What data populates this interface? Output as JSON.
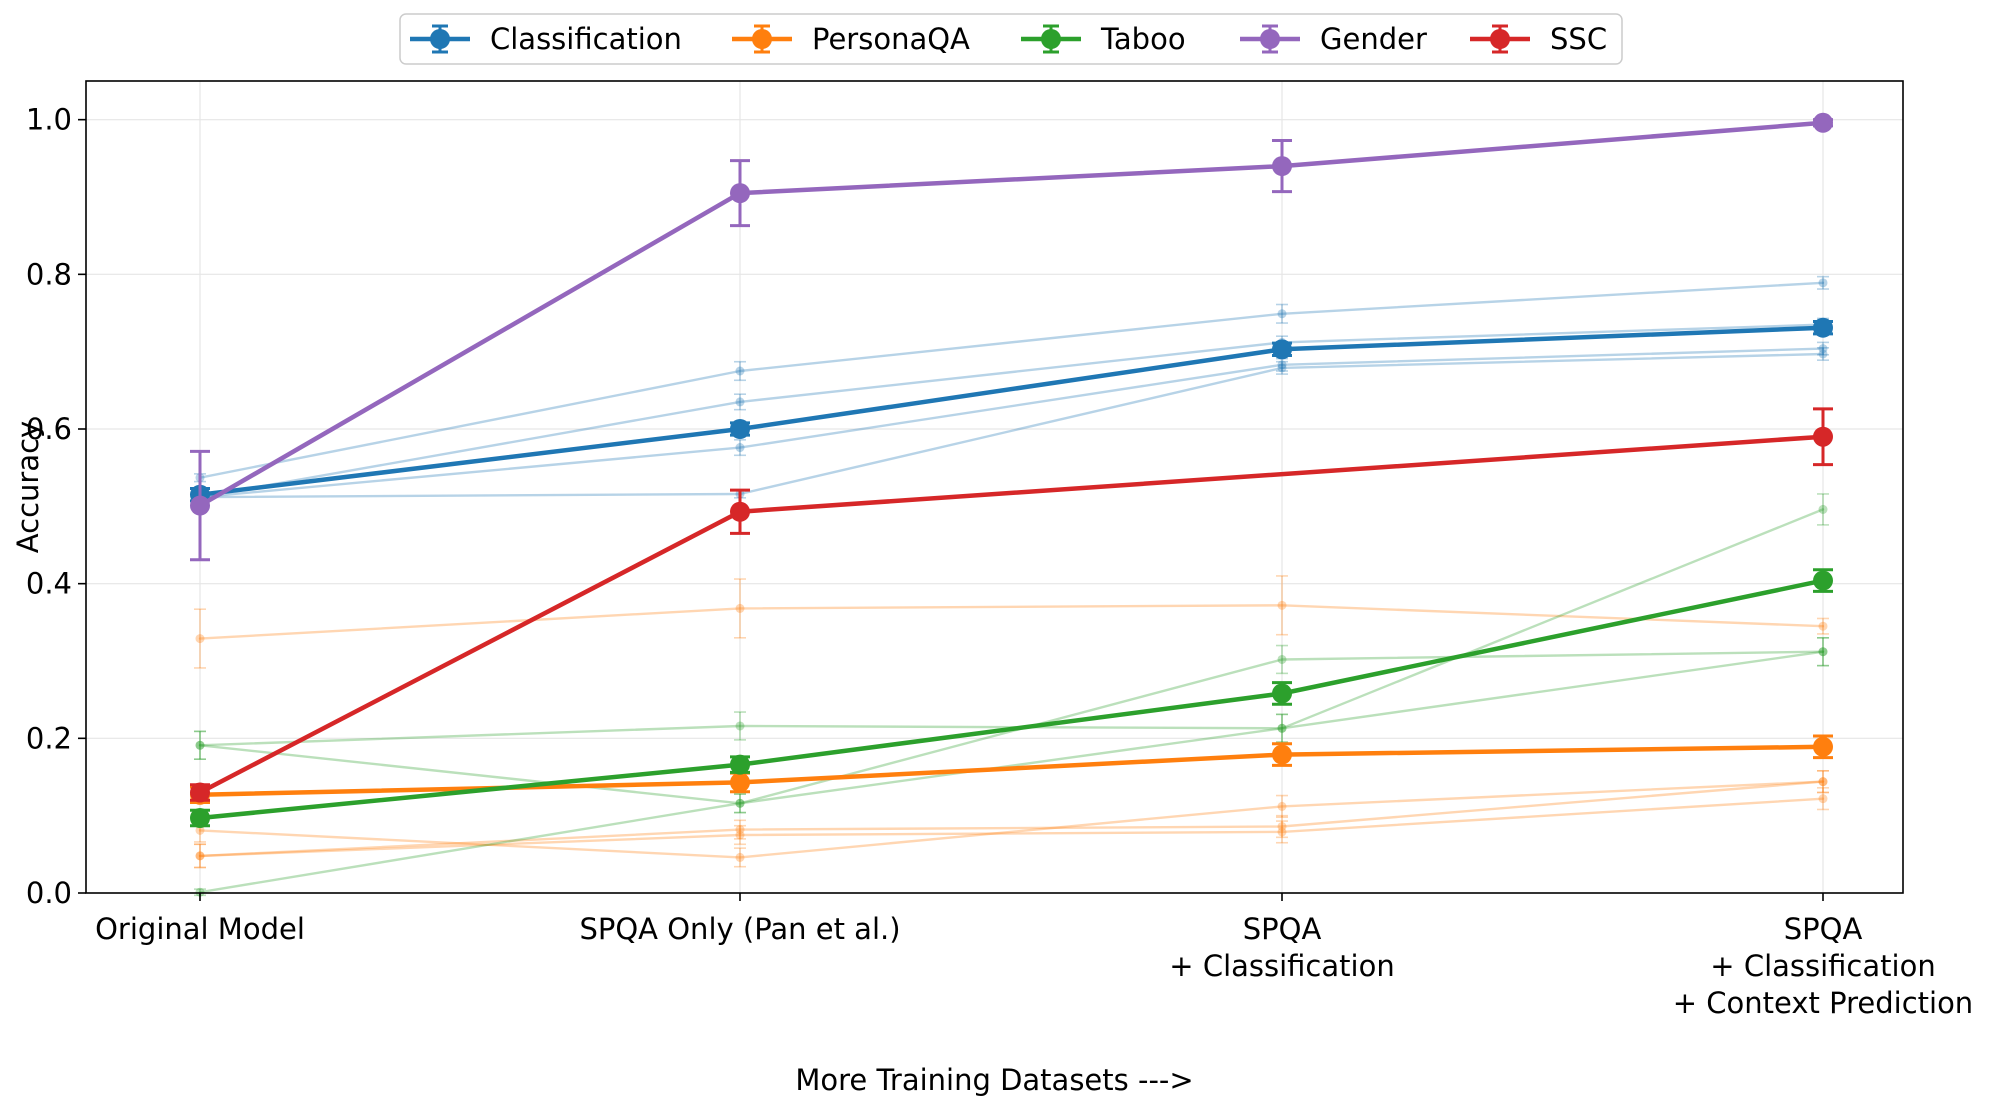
{
  "chart_data": {
    "type": "line",
    "title": "",
    "xlabel": "More Training Datasets --->",
    "ylabel": "Accuracy",
    "ylim": [
      0.0,
      1.05
    ],
    "yticks": [
      0.0,
      0.2,
      0.4,
      0.6,
      0.8,
      1.0
    ],
    "ytick_labels": [
      "0.0",
      "0.2",
      "0.4",
      "0.6",
      "0.8",
      "1.0"
    ],
    "grid": true,
    "legend_position": "top-center",
    "categories": [
      [
        "Original Model"
      ],
      [
        "SPQA Only (Pan et al.)"
      ],
      [
        "SPQA",
        "+ Classification"
      ],
      [
        "SPQA",
        "+ Classification",
        "+ Context Prediction"
      ]
    ],
    "series": [
      {
        "name": "Classification",
        "color": "#1f77b4",
        "values": [
          0.515,
          0.6,
          0.703,
          0.731
        ],
        "errors": [
          0.008,
          0.008,
          0.008,
          0.008
        ]
      },
      {
        "name": "PersonaQA",
        "color": "#ff7f0e",
        "values": [
          0.127,
          0.143,
          0.179,
          0.189
        ],
        "errors": [
          0.01,
          0.012,
          0.014,
          0.014
        ]
      },
      {
        "name": "Taboo",
        "color": "#2ca02c",
        "values": [
          0.097,
          0.166,
          0.258,
          0.404
        ],
        "errors": [
          0.01,
          0.01,
          0.014,
          0.014
        ]
      },
      {
        "name": "Gender",
        "color": "#9467bd",
        "values": [
          0.501,
          0.905,
          0.94,
          0.996
        ],
        "errors": [
          0.07,
          0.042,
          0.033,
          0.004
        ]
      },
      {
        "name": "SSC",
        "color": "#d62728",
        "values": [
          0.13,
          0.493,
          null,
          0.59
        ],
        "errors": [
          0.01,
          0.028,
          null,
          0.036
        ]
      }
    ],
    "background_series": [
      {
        "group": "Classification",
        "color": "#1f77b4",
        "values": [
          0.537,
          0.675,
          0.749,
          0.789
        ],
        "errors": [
          0.005,
          0.012,
          0.012,
          0.008
        ]
      },
      {
        "group": "Classification",
        "color": "#1f77b4",
        "values": [
          0.512,
          0.635,
          0.712,
          0.735
        ],
        "errors": [
          0.005,
          0.01,
          0.008,
          0.008
        ]
      },
      {
        "group": "Classification",
        "color": "#1f77b4",
        "values": [
          0.512,
          0.576,
          0.683,
          0.704
        ],
        "errors": [
          0.005,
          0.01,
          0.008,
          0.008
        ]
      },
      {
        "group": "Classification",
        "color": "#1f77b4",
        "values": [
          0.512,
          0.516,
          0.679,
          0.697
        ],
        "errors": [
          0.005,
          0.005,
          0.008,
          0.008
        ]
      },
      {
        "group": "PersonaQA",
        "color": "#ff7f0e",
        "values": [
          0.329,
          0.368,
          0.372,
          0.345
        ],
        "errors": [
          0.038,
          0.038,
          0.038,
          0.01
        ]
      },
      {
        "group": "PersonaQA",
        "color": "#ff7f0e",
        "values": [
          0.081,
          0.046,
          0.112,
          0.144
        ],
        "errors": [
          0.015,
          0.012,
          0.014,
          0.014
        ]
      },
      {
        "group": "PersonaQA",
        "color": "#ff7f0e",
        "values": [
          0.048,
          0.082,
          0.086,
          0.144
        ],
        "errors": [
          0.015,
          0.012,
          0.014,
          0.014
        ]
      },
      {
        "group": "PersonaQA",
        "color": "#ff7f0e",
        "values": [
          0.048,
          0.075,
          0.079,
          0.122
        ],
        "errors": [
          0.015,
          0.012,
          0.014,
          0.014
        ]
      },
      {
        "group": "Taboo",
        "color": "#2ca02c",
        "values": [
          0.191,
          0.216,
          0.213,
          0.496
        ],
        "errors": [
          0.018,
          0.018,
          0.018,
          0.02
        ]
      },
      {
        "group": "Taboo",
        "color": "#2ca02c",
        "values": [
          0.191,
          0.116,
          0.302,
          0.312
        ],
        "errors": [
          0.018,
          0.012,
          0.018,
          0.018
        ]
      },
      {
        "group": "Taboo",
        "color": "#2ca02c",
        "values": [
          0.001,
          0.116,
          0.213,
          0.312
        ],
        "errors": [
          0.004,
          0.012,
          0.018,
          0.018
        ]
      }
    ]
  }
}
